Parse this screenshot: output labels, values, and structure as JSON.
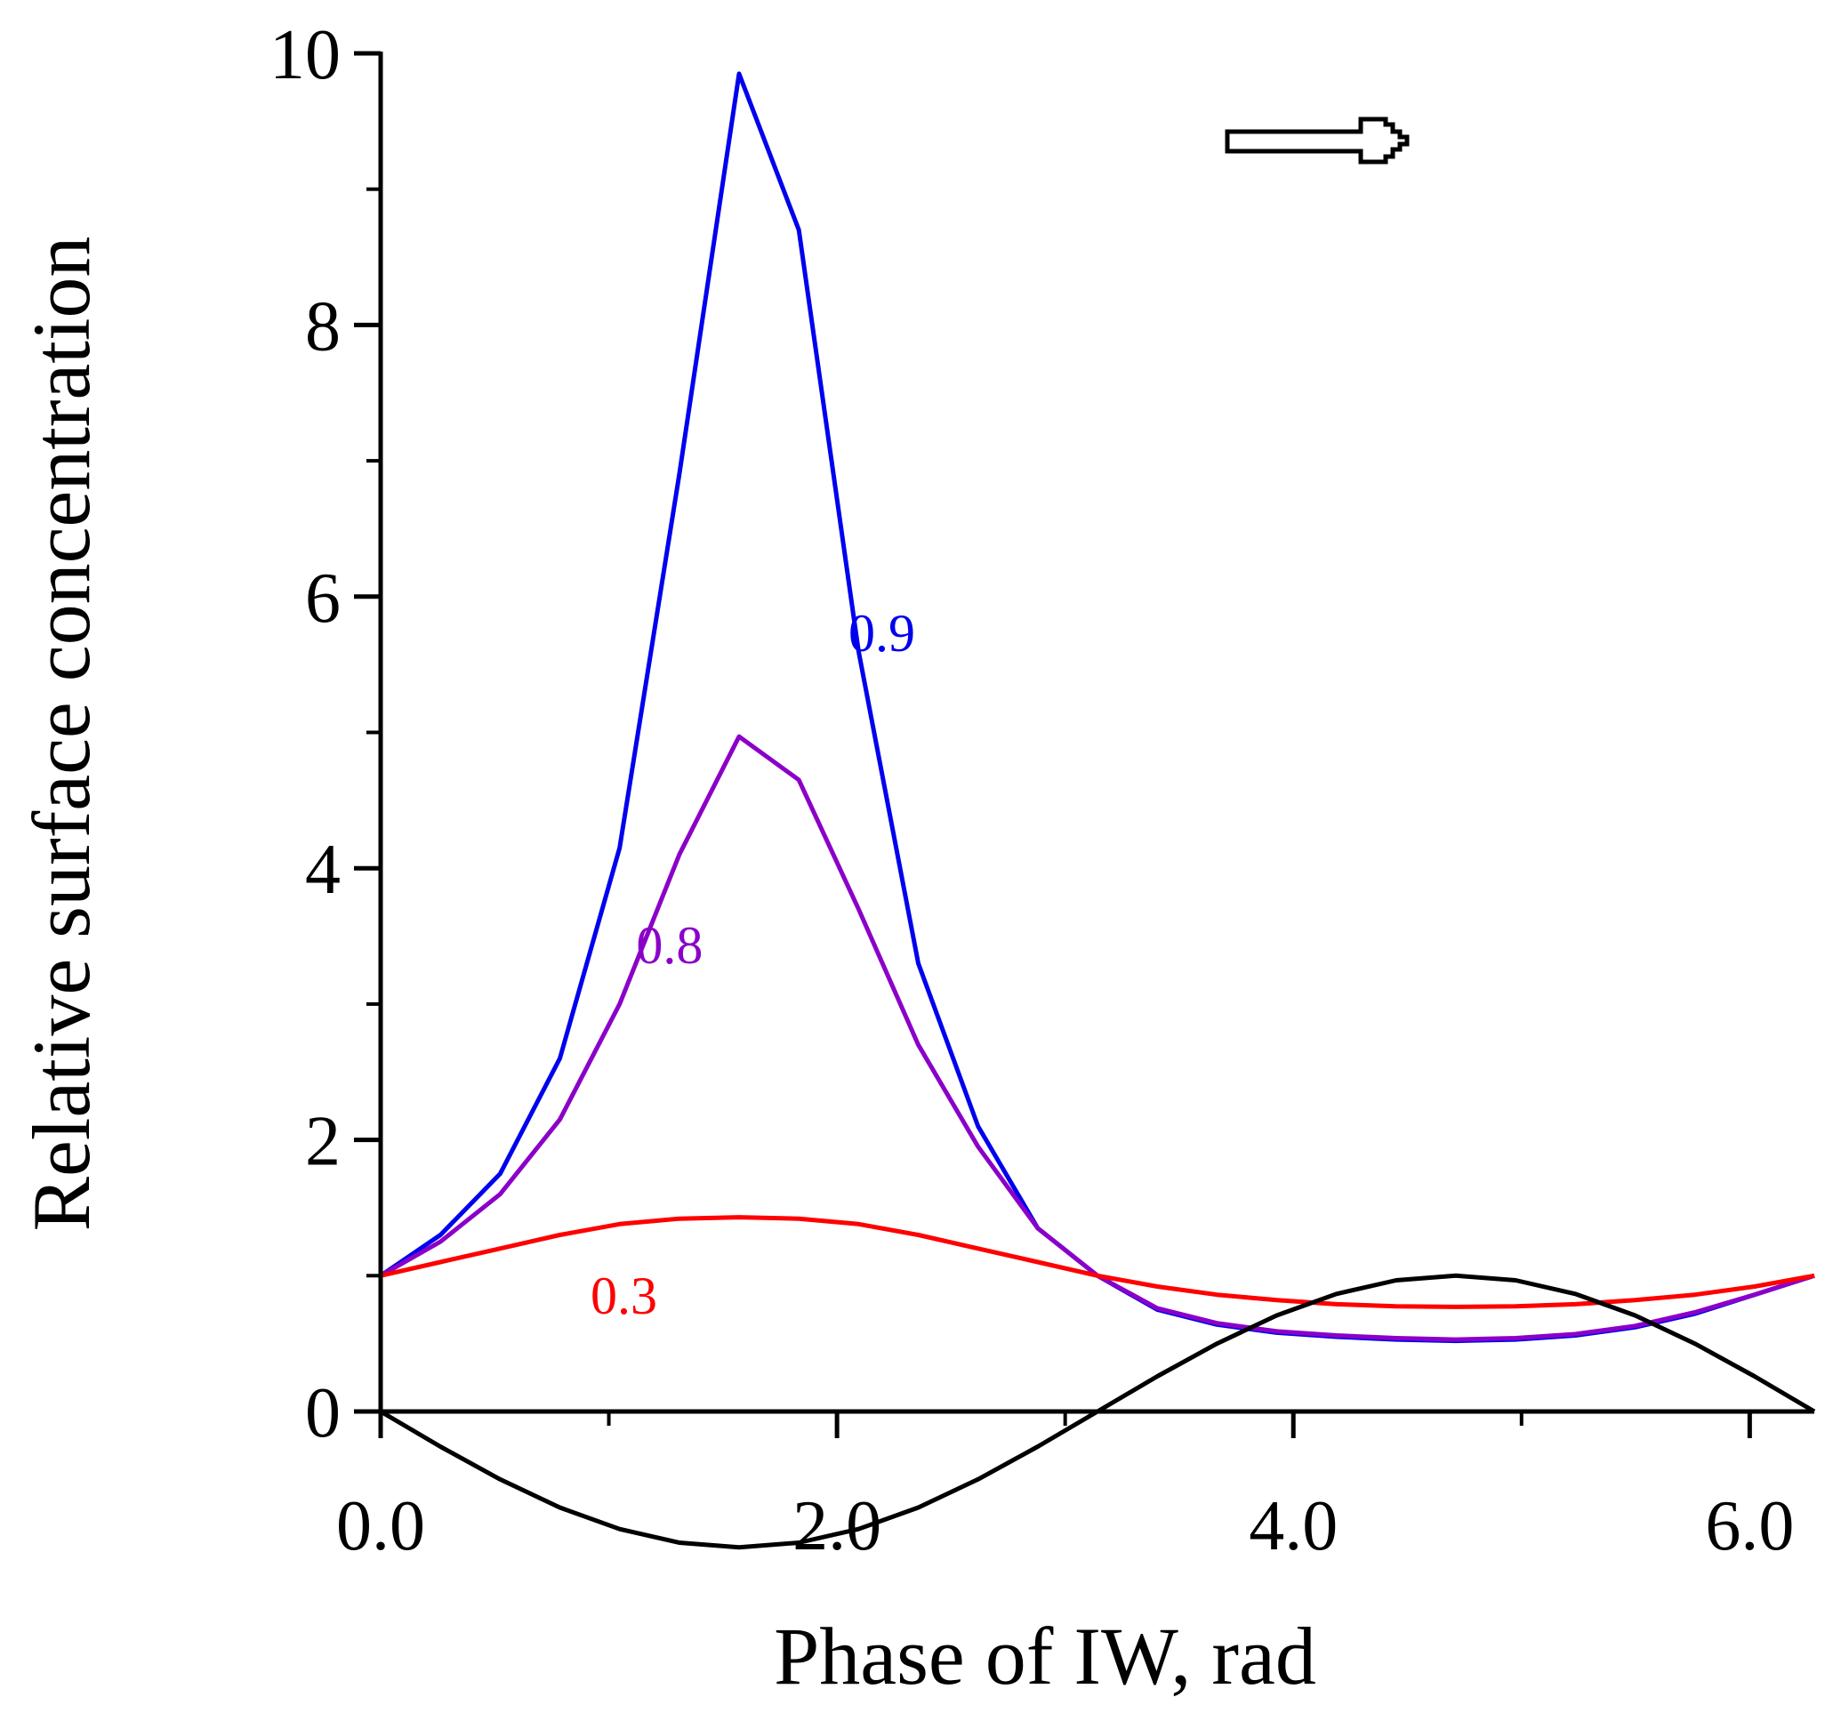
{
  "chart_data": {
    "type": "line",
    "title": "",
    "xlabel": "Phase of IW, rad",
    "ylabel": "Relative surface concentration",
    "xlim": [
      0,
      6.2832
    ],
    "ylim": [
      0,
      10
    ],
    "x_ticks": [
      {
        "value": 0,
        "label": "0.0"
      },
      {
        "value": 2,
        "label": "2.0"
      },
      {
        "value": 4,
        "label": "4.0"
      },
      {
        "value": 6,
        "label": "6.0"
      }
    ],
    "x_minor_ticks": [
      1,
      3,
      5
    ],
    "y_ticks": [
      {
        "value": 0,
        "label": "0"
      },
      {
        "value": 2,
        "label": "2"
      },
      {
        "value": 4,
        "label": "4"
      },
      {
        "value": 6,
        "label": "6"
      },
      {
        "value": 8,
        "label": "8"
      },
      {
        "value": 10,
        "label": "10"
      }
    ],
    "y_minor_ticks": [
      1,
      3,
      5,
      7,
      9
    ],
    "grid": false,
    "annotations": [
      {
        "name": "propagation-direction-arrow",
        "type": "arrow",
        "direction": "right"
      }
    ],
    "series": [
      {
        "name": "0.9",
        "label": "0.9",
        "color": "#0000ee",
        "label_at": [
          2.05,
          5.6
        ],
        "x": [
          0,
          0.2618,
          0.5236,
          0.7854,
          1.0472,
          1.309,
          1.5708,
          1.8326,
          2.0944,
          2.3562,
          2.618,
          2.8798,
          3.1416,
          3.4034,
          3.6652,
          3.927,
          4.1888,
          4.4506,
          4.7124,
          4.9742,
          5.236,
          5.4978,
          5.7596,
          6.0214,
          6.2832
        ],
        "y": [
          1.0,
          1.3,
          1.75,
          2.6,
          4.15,
          6.9,
          9.85,
          8.7,
          5.6,
          3.3,
          2.1,
          1.35,
          1.0,
          0.75,
          0.64,
          0.58,
          0.55,
          0.53,
          0.52,
          0.53,
          0.56,
          0.62,
          0.72,
          0.86,
          1.0
        ]
      },
      {
        "name": "0.8",
        "label": "0.8",
        "color": "#8b00c8",
        "label_at": [
          1.12,
          3.3
        ],
        "x": [
          0,
          0.2618,
          0.5236,
          0.7854,
          1.0472,
          1.309,
          1.5708,
          1.8326,
          2.0944,
          2.3562,
          2.618,
          2.8798,
          3.1416,
          3.4034,
          3.6652,
          3.927,
          4.1888,
          4.4506,
          4.7124,
          4.9742,
          5.236,
          5.4978,
          5.7596,
          6.0214,
          6.2832
        ],
        "y": [
          1.0,
          1.25,
          1.6,
          2.15,
          3.0,
          4.1,
          4.97,
          4.65,
          3.7,
          2.7,
          1.95,
          1.35,
          1.0,
          0.76,
          0.65,
          0.59,
          0.56,
          0.54,
          0.53,
          0.54,
          0.57,
          0.63,
          0.73,
          0.86,
          1.0
        ]
      },
      {
        "name": "0.3",
        "label": "0.3",
        "color": "#ff0000",
        "label_at": [
          0.92,
          0.72
        ],
        "x": [
          0,
          0.2618,
          0.5236,
          0.7854,
          1.0472,
          1.309,
          1.5708,
          1.8326,
          2.0944,
          2.3562,
          2.618,
          2.8798,
          3.1416,
          3.4034,
          3.6652,
          3.927,
          4.1888,
          4.4506,
          4.7124,
          4.9742,
          5.236,
          5.4978,
          5.7596,
          6.0214,
          6.2832
        ],
        "y": [
          1.0,
          1.1,
          1.2,
          1.3,
          1.38,
          1.42,
          1.43,
          1.42,
          1.38,
          1.3,
          1.2,
          1.1,
          1.0,
          0.92,
          0.86,
          0.82,
          0.79,
          0.775,
          0.77,
          0.775,
          0.79,
          0.82,
          0.86,
          0.92,
          1.0
        ]
      },
      {
        "name": "internal-wave-phase",
        "label": "",
        "color": "#000000",
        "x": [
          0,
          0.2618,
          0.5236,
          0.7854,
          1.0472,
          1.309,
          1.5708,
          1.8326,
          2.0944,
          2.3562,
          2.618,
          2.8798,
          3.1416,
          3.4034,
          3.6652,
          3.927,
          4.1888,
          4.4506,
          4.7124,
          4.9742,
          5.236,
          5.4978,
          5.7596,
          6.0214,
          6.2832
        ],
        "y": [
          0.0,
          -0.259,
          -0.5,
          -0.707,
          -0.866,
          -0.966,
          -1.0,
          -0.966,
          -0.866,
          -0.707,
          -0.5,
          -0.259,
          0.0,
          0.259,
          0.5,
          0.707,
          0.866,
          0.966,
          1.0,
          0.966,
          0.866,
          0.707,
          0.5,
          0.259,
          0.0
        ]
      }
    ]
  }
}
